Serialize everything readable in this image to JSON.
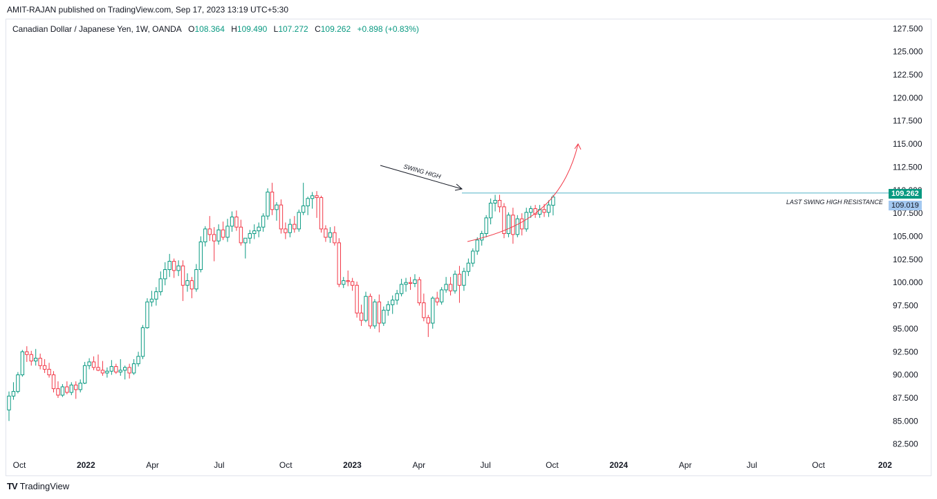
{
  "credit": "AMIT-RAJAN published on TradingView.com, Sep 17, 2023 13:19 UTC+5:30",
  "legend": {
    "symbol": "Canadian Dollar / Japanese Yen, 1W, OANDA",
    "open_label": "O",
    "open": "108.364",
    "high_label": "H",
    "high": "109.490",
    "low_label": "L",
    "low": "107.272",
    "close_label": "C",
    "close": "109.262",
    "change": "+0.898 (+0.83%)"
  },
  "footer": {
    "logo": "TV",
    "brand": "TradingView"
  },
  "annotations": {
    "swing_high": "SWING HIGH",
    "resistance": "LAST SWING HIGH RESISTANCE"
  },
  "price_tags": {
    "last": "109.262",
    "level": "109.019"
  },
  "colors": {
    "up": "#089981",
    "down": "#f23645",
    "line": "#4fb0c6",
    "level_tag": "#a3c8f0"
  },
  "chart_data": {
    "type": "candlestick",
    "ylim": [
      81.5,
      128.5
    ],
    "y_ticks": [
      "82.500",
      "85.000",
      "87.500",
      "90.000",
      "92.500",
      "95.000",
      "97.500",
      "100.000",
      "102.500",
      "105.000",
      "107.500",
      "110.000",
      "112.500",
      "115.000",
      "117.500",
      "120.000",
      "122.500",
      "125.000",
      "127.500"
    ],
    "x_ticks": [
      "Oct",
      "2022",
      "Apr",
      "Jul",
      "Oct",
      "2023",
      "Apr",
      "Jul",
      "Oct",
      "2024",
      "Apr",
      "Jul",
      "Oct",
      "202"
    ],
    "resistance_level": 109.019,
    "candles": [
      {
        "o": 86.2,
        "h": 88.2,
        "l": 85.0,
        "c": 87.7
      },
      {
        "o": 87.7,
        "h": 89.2,
        "l": 87.3,
        "c": 88.2
      },
      {
        "o": 88.2,
        "h": 90.3,
        "l": 88.0,
        "c": 90.0
      },
      {
        "o": 90.0,
        "h": 92.7,
        "l": 89.8,
        "c": 92.5
      },
      {
        "o": 92.5,
        "h": 93.1,
        "l": 91.4,
        "c": 92.2
      },
      {
        "o": 92.2,
        "h": 92.6,
        "l": 91.0,
        "c": 91.5
      },
      {
        "o": 91.5,
        "h": 92.8,
        "l": 91.0,
        "c": 91.8
      },
      {
        "o": 91.8,
        "h": 92.3,
        "l": 90.6,
        "c": 91.0
      },
      {
        "o": 91.0,
        "h": 91.7,
        "l": 90.2,
        "c": 90.6
      },
      {
        "o": 90.6,
        "h": 91.3,
        "l": 89.7,
        "c": 90.0
      },
      {
        "o": 90.0,
        "h": 90.4,
        "l": 88.1,
        "c": 88.5
      },
      {
        "o": 88.5,
        "h": 89.3,
        "l": 87.5,
        "c": 87.8
      },
      {
        "o": 87.8,
        "h": 89.0,
        "l": 87.6,
        "c": 88.7
      },
      {
        "o": 88.7,
        "h": 89.3,
        "l": 87.9,
        "c": 88.1
      },
      {
        "o": 88.1,
        "h": 89.2,
        "l": 87.8,
        "c": 88.9
      },
      {
        "o": 88.9,
        "h": 89.3,
        "l": 87.4,
        "c": 88.4
      },
      {
        "o": 88.4,
        "h": 89.5,
        "l": 88.1,
        "c": 89.1
      },
      {
        "o": 89.1,
        "h": 91.4,
        "l": 89.0,
        "c": 91.0
      },
      {
        "o": 91.0,
        "h": 91.8,
        "l": 90.6,
        "c": 91.4
      },
      {
        "o": 91.4,
        "h": 92.0,
        "l": 90.5,
        "c": 90.8
      },
      {
        "o": 90.8,
        "h": 92.2,
        "l": 90.4,
        "c": 90.5
      },
      {
        "o": 90.5,
        "h": 91.5,
        "l": 89.9,
        "c": 90.2
      },
      {
        "o": 90.2,
        "h": 90.8,
        "l": 89.7,
        "c": 90.4
      },
      {
        "o": 90.4,
        "h": 91.6,
        "l": 90.0,
        "c": 90.9
      },
      {
        "o": 90.9,
        "h": 91.2,
        "l": 90.1,
        "c": 90.3
      },
      {
        "o": 90.3,
        "h": 91.7,
        "l": 89.9,
        "c": 90.5
      },
      {
        "o": 90.5,
        "h": 91.0,
        "l": 89.5,
        "c": 90.8
      },
      {
        "o": 90.8,
        "h": 91.2,
        "l": 89.6,
        "c": 90.2
      },
      {
        "o": 90.2,
        "h": 91.7,
        "l": 90.0,
        "c": 91.2
      },
      {
        "o": 91.2,
        "h": 92.5,
        "l": 90.9,
        "c": 92.0
      },
      {
        "o": 92.0,
        "h": 95.4,
        "l": 91.7,
        "c": 95.1
      },
      {
        "o": 95.1,
        "h": 98.3,
        "l": 95.0,
        "c": 97.9
      },
      {
        "o": 97.9,
        "h": 99.1,
        "l": 97.4,
        "c": 98.2
      },
      {
        "o": 98.2,
        "h": 99.5,
        "l": 97.5,
        "c": 99.0
      },
      {
        "o": 99.0,
        "h": 101.2,
        "l": 98.6,
        "c": 100.4
      },
      {
        "o": 100.4,
        "h": 102.2,
        "l": 99.7,
        "c": 101.4
      },
      {
        "o": 101.4,
        "h": 103.1,
        "l": 100.6,
        "c": 102.3
      },
      {
        "o": 102.3,
        "h": 102.6,
        "l": 100.5,
        "c": 101.3
      },
      {
        "o": 101.3,
        "h": 102.4,
        "l": 100.7,
        "c": 101.8
      },
      {
        "o": 101.8,
        "h": 102.4,
        "l": 98.0,
        "c": 99.7
      },
      {
        "o": 99.7,
        "h": 101.0,
        "l": 99.0,
        "c": 100.2
      },
      {
        "o": 100.2,
        "h": 100.6,
        "l": 98.3,
        "c": 99.3
      },
      {
        "o": 99.3,
        "h": 102.0,
        "l": 99.0,
        "c": 101.4
      },
      {
        "o": 101.4,
        "h": 105.0,
        "l": 101.1,
        "c": 104.4
      },
      {
        "o": 104.4,
        "h": 106.1,
        "l": 103.9,
        "c": 105.8
      },
      {
        "o": 105.8,
        "h": 107.2,
        "l": 104.5,
        "c": 105.2
      },
      {
        "o": 105.2,
        "h": 106.0,
        "l": 102.3,
        "c": 104.5
      },
      {
        "o": 104.5,
        "h": 106.3,
        "l": 104.1,
        "c": 105.7
      },
      {
        "o": 105.7,
        "h": 106.6,
        "l": 104.6,
        "c": 104.9
      },
      {
        "o": 104.9,
        "h": 106.9,
        "l": 104.4,
        "c": 106.1
      },
      {
        "o": 106.1,
        "h": 107.7,
        "l": 105.5,
        "c": 107.1
      },
      {
        "o": 107.1,
        "h": 107.8,
        "l": 105.6,
        "c": 106.0
      },
      {
        "o": 106.0,
        "h": 106.8,
        "l": 104.0,
        "c": 104.3
      },
      {
        "o": 104.3,
        "h": 104.8,
        "l": 102.6,
        "c": 104.8
      },
      {
        "o": 104.8,
        "h": 105.7,
        "l": 104.2,
        "c": 105.3
      },
      {
        "o": 105.3,
        "h": 106.3,
        "l": 104.7,
        "c": 105.6
      },
      {
        "o": 105.6,
        "h": 106.5,
        "l": 104.9,
        "c": 106.0
      },
      {
        "o": 106.0,
        "h": 107.5,
        "l": 105.5,
        "c": 107.2
      },
      {
        "o": 107.2,
        "h": 110.2,
        "l": 106.8,
        "c": 109.8
      },
      {
        "o": 109.8,
        "h": 110.8,
        "l": 107.3,
        "c": 107.9
      },
      {
        "o": 107.9,
        "h": 108.7,
        "l": 106.7,
        "c": 108.4
      },
      {
        "o": 108.4,
        "h": 109.0,
        "l": 105.3,
        "c": 105.8
      },
      {
        "o": 105.8,
        "h": 106.5,
        "l": 104.7,
        "c": 105.4
      },
      {
        "o": 105.4,
        "h": 106.9,
        "l": 104.9,
        "c": 106.3
      },
      {
        "o": 106.3,
        "h": 107.2,
        "l": 105.4,
        "c": 105.8
      },
      {
        "o": 105.8,
        "h": 107.9,
        "l": 105.5,
        "c": 107.6
      },
      {
        "o": 107.6,
        "h": 110.8,
        "l": 107.3,
        "c": 108.3
      },
      {
        "o": 108.3,
        "h": 109.3,
        "l": 107.3,
        "c": 109.1
      },
      {
        "o": 109.1,
        "h": 109.8,
        "l": 108.0,
        "c": 109.4
      },
      {
        "o": 109.4,
        "h": 109.9,
        "l": 107.0,
        "c": 109.2
      },
      {
        "o": 109.2,
        "h": 109.4,
        "l": 105.4,
        "c": 105.8
      },
      {
        "o": 105.8,
        "h": 106.2,
        "l": 104.4,
        "c": 104.9
      },
      {
        "o": 104.9,
        "h": 106.0,
        "l": 104.3,
        "c": 105.4
      },
      {
        "o": 105.4,
        "h": 106.1,
        "l": 104.0,
        "c": 104.3
      },
      {
        "o": 104.3,
        "h": 104.8,
        "l": 99.5,
        "c": 99.8
      },
      {
        "o": 99.8,
        "h": 100.6,
        "l": 99.4,
        "c": 100.2
      },
      {
        "o": 100.2,
        "h": 101.3,
        "l": 99.6,
        "c": 100.1
      },
      {
        "o": 100.1,
        "h": 100.5,
        "l": 99.1,
        "c": 99.7
      },
      {
        "o": 99.7,
        "h": 100.1,
        "l": 96.2,
        "c": 96.7
      },
      {
        "o": 96.7,
        "h": 97.6,
        "l": 95.3,
        "c": 95.9
      },
      {
        "o": 95.9,
        "h": 99.0,
        "l": 95.7,
        "c": 98.5
      },
      {
        "o": 98.5,
        "h": 98.8,
        "l": 95.0,
        "c": 95.3
      },
      {
        "o": 95.3,
        "h": 98.2,
        "l": 95.0,
        "c": 97.9
      },
      {
        "o": 97.9,
        "h": 98.7,
        "l": 94.6,
        "c": 95.6
      },
      {
        "o": 95.6,
        "h": 97.4,
        "l": 95.3,
        "c": 97.0
      },
      {
        "o": 97.0,
        "h": 98.0,
        "l": 96.4,
        "c": 97.6
      },
      {
        "o": 97.6,
        "h": 98.6,
        "l": 96.6,
        "c": 98.1
      },
      {
        "o": 98.1,
        "h": 99.2,
        "l": 97.6,
        "c": 98.8
      },
      {
        "o": 98.8,
        "h": 100.4,
        "l": 98.5,
        "c": 99.8
      },
      {
        "o": 99.8,
        "h": 100.5,
        "l": 99.0,
        "c": 100.0
      },
      {
        "o": 100.0,
        "h": 100.6,
        "l": 99.2,
        "c": 99.9
      },
      {
        "o": 99.9,
        "h": 100.9,
        "l": 99.5,
        "c": 100.3
      },
      {
        "o": 100.3,
        "h": 100.6,
        "l": 97.5,
        "c": 97.8
      },
      {
        "o": 97.8,
        "h": 98.8,
        "l": 95.8,
        "c": 96.2
      },
      {
        "o": 96.2,
        "h": 96.5,
        "l": 94.1,
        "c": 95.6
      },
      {
        "o": 95.6,
        "h": 98.5,
        "l": 95.0,
        "c": 98.3
      },
      {
        "o": 98.3,
        "h": 99.0,
        "l": 97.5,
        "c": 97.9
      },
      {
        "o": 97.9,
        "h": 99.5,
        "l": 97.6,
        "c": 99.2
      },
      {
        "o": 99.2,
        "h": 100.6,
        "l": 98.9,
        "c": 99.8
      },
      {
        "o": 99.8,
        "h": 100.6,
        "l": 98.6,
        "c": 99.1
      },
      {
        "o": 99.1,
        "h": 101.3,
        "l": 98.8,
        "c": 100.9
      },
      {
        "o": 100.9,
        "h": 101.8,
        "l": 97.8,
        "c": 99.7
      },
      {
        "o": 99.7,
        "h": 101.6,
        "l": 99.1,
        "c": 101.2
      },
      {
        "o": 101.2,
        "h": 102.6,
        "l": 100.7,
        "c": 102.1
      },
      {
        "o": 102.1,
        "h": 103.7,
        "l": 101.7,
        "c": 103.4
      },
      {
        "o": 103.4,
        "h": 104.9,
        "l": 103.0,
        "c": 104.6
      },
      {
        "o": 104.6,
        "h": 105.6,
        "l": 104.0,
        "c": 105.3
      },
      {
        "o": 105.3,
        "h": 107.3,
        "l": 104.9,
        "c": 107.0
      },
      {
        "o": 107.0,
        "h": 109.1,
        "l": 106.3,
        "c": 108.6
      },
      {
        "o": 108.6,
        "h": 109.5,
        "l": 107.7,
        "c": 108.9
      },
      {
        "o": 108.9,
        "h": 109.5,
        "l": 107.6,
        "c": 108.2
      },
      {
        "o": 108.2,
        "h": 108.6,
        "l": 104.8,
        "c": 105.3
      },
      {
        "o": 105.3,
        "h": 107.6,
        "l": 104.9,
        "c": 107.3
      },
      {
        "o": 107.3,
        "h": 108.1,
        "l": 104.2,
        "c": 105.2
      },
      {
        "o": 105.2,
        "h": 107.3,
        "l": 104.9,
        "c": 106.9
      },
      {
        "o": 106.9,
        "h": 107.5,
        "l": 105.1,
        "c": 105.8
      },
      {
        "o": 105.8,
        "h": 108.1,
        "l": 105.5,
        "c": 107.6
      },
      {
        "o": 107.6,
        "h": 108.3,
        "l": 107.0,
        "c": 108.0
      },
      {
        "o": 108.0,
        "h": 108.4,
        "l": 107.0,
        "c": 107.4
      },
      {
        "o": 107.4,
        "h": 108.4,
        "l": 107.0,
        "c": 107.9
      },
      {
        "o": 107.9,
        "h": 108.5,
        "l": 107.1,
        "c": 107.6
      },
      {
        "o": 107.6,
        "h": 108.9,
        "l": 107.1,
        "c": 108.4
      },
      {
        "o": 108.364,
        "h": 109.49,
        "l": 107.272,
        "c": 109.262
      }
    ]
  }
}
